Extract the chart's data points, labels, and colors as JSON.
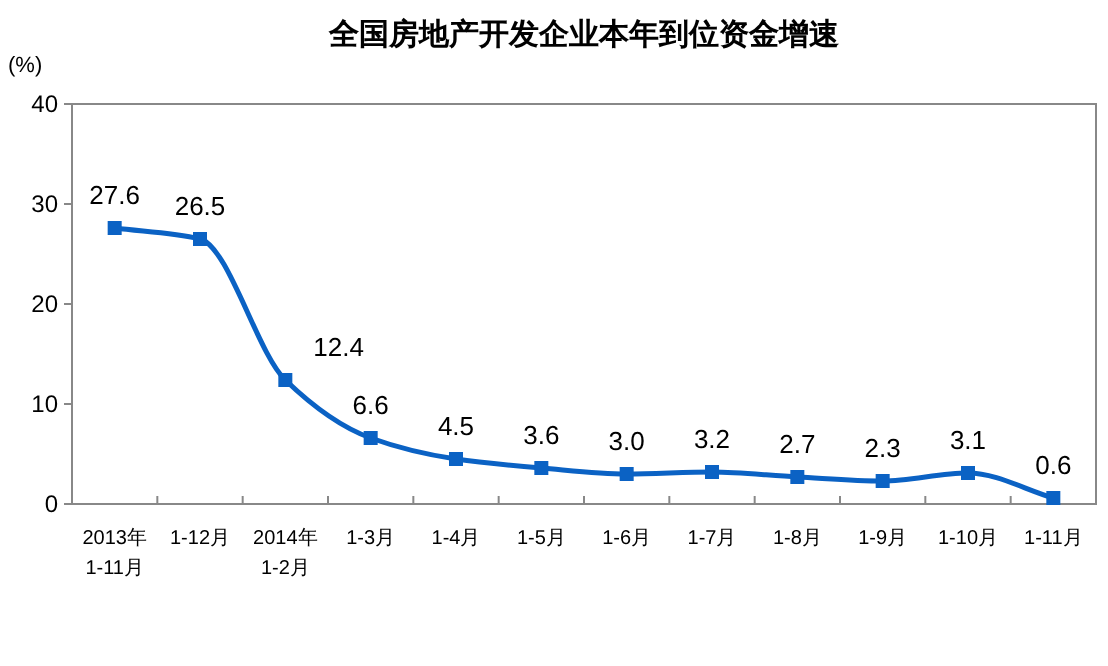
{
  "chart_data": {
    "type": "line",
    "title": "全国房地产开发企业本年到位资金增速",
    "ylabel": "(%)",
    "categories": [
      "2013年\n1-11月",
      "1-12月",
      "2014年\n1-2月",
      "1-3月",
      "1-4月",
      "1-5月",
      "1-6月",
      "1-7月",
      "1-8月",
      "1-9月",
      "1-10月",
      "1-11月"
    ],
    "series": [
      {
        "color": "#0b62c4",
        "values": [
          27.6,
          26.5,
          12.4,
          6.6,
          4.5,
          3.6,
          3.0,
          3.2,
          2.7,
          2.3,
          3.1,
          0.6
        ],
        "value_labels": [
          "27.6",
          "26.5",
          "12.4",
          "6.6",
          "4.5",
          "3.6",
          "3.0",
          "3.2",
          "2.7",
          "2.3",
          "3.1",
          "0.6"
        ]
      }
    ],
    "ylim": [
      0,
      40
    ],
    "yticks": [
      0,
      10,
      20,
      30,
      40
    ],
    "grid": false,
    "marker": "square",
    "line_style": "solid"
  }
}
